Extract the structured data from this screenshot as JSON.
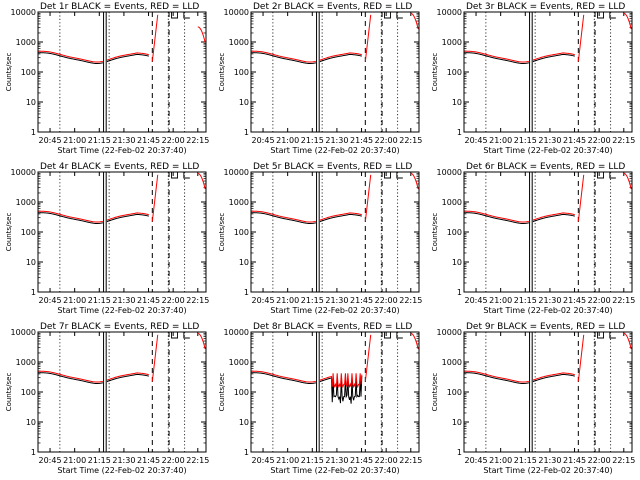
{
  "colors": {
    "events": "#000000",
    "lld": "#ff0000",
    "axis": "#000000",
    "background": "#ffffff"
  },
  "chart_data": [
    {
      "type": "line",
      "title": "Det 1r BLACK = Events, RED = LLD",
      "xlabel": "Start Time (22-Feb-02 20:37:40)",
      "ylabel": "Counts/sec",
      "x_ticks": [
        "20:45",
        "21:00",
        "21:15",
        "21:30",
        "21:45",
        "22:00",
        "22:15"
      ],
      "y_ticks": [
        "1",
        "10",
        "100",
        "1000",
        "10000"
      ],
      "ylim": [
        1,
        10000
      ],
      "yscale": "log",
      "variant": "spike",
      "series": [
        {
          "name": "Events",
          "color": "#000000"
        },
        {
          "name": "LLD",
          "color": "#ff0000"
        }
      ]
    },
    {
      "type": "line",
      "title": "Det 2r BLACK = Events, RED = LLD",
      "xlabel": "Start Time (22-Feb-02 20:37:40)",
      "ylabel": "Counts/sec",
      "x_ticks": [
        "20:45",
        "21:00",
        "21:15",
        "21:30",
        "21:45",
        "22:00",
        "22:15"
      ],
      "y_ticks": [
        "1",
        "10",
        "100",
        "1000",
        "10000"
      ],
      "ylim": [
        1,
        10000
      ],
      "yscale": "log",
      "variant": "normal",
      "series": [
        {
          "name": "Events",
          "color": "#000000"
        },
        {
          "name": "LLD",
          "color": "#ff0000"
        }
      ]
    },
    {
      "type": "line",
      "title": "Det 3r BLACK = Events, RED = LLD",
      "xlabel": "Start Time (22-Feb-02 20:37:40)",
      "ylabel": "Counts/sec",
      "x_ticks": [
        "20:45",
        "21:00",
        "21:15",
        "21:30",
        "21:45",
        "22:00",
        "22:15"
      ],
      "y_ticks": [
        "1",
        "10",
        "100",
        "1000",
        "10000"
      ],
      "ylim": [
        1,
        10000
      ],
      "yscale": "log",
      "variant": "normal",
      "series": [
        {
          "name": "Events",
          "color": "#000000"
        },
        {
          "name": "LLD",
          "color": "#ff0000"
        }
      ]
    },
    {
      "type": "line",
      "title": "Det 4r BLACK = Events, RED = LLD",
      "xlabel": "Start Time (22-Feb-02 20:37:40)",
      "ylabel": "Counts/sec",
      "x_ticks": [
        "20:45",
        "21:00",
        "21:15",
        "21:30",
        "21:45",
        "22:00",
        "22:15"
      ],
      "y_ticks": [
        "1",
        "10",
        "100",
        "1000",
        "10000"
      ],
      "ylim": [
        1,
        10000
      ],
      "yscale": "log",
      "variant": "normal",
      "series": [
        {
          "name": "Events",
          "color": "#000000"
        },
        {
          "name": "LLD",
          "color": "#ff0000"
        }
      ]
    },
    {
      "type": "line",
      "title": "Det 5r BLACK = Events, RED = LLD",
      "xlabel": "Start Time (22-Feb-02 20:37:40)",
      "ylabel": "Counts/sec",
      "x_ticks": [
        "20:45",
        "21:00",
        "21:15",
        "21:30",
        "21:45",
        "22:00",
        "22:15"
      ],
      "y_ticks": [
        "1",
        "10",
        "100",
        "1000",
        "10000"
      ],
      "ylim": [
        1,
        10000
      ],
      "yscale": "log",
      "variant": "normal",
      "series": [
        {
          "name": "Events",
          "color": "#000000"
        },
        {
          "name": "LLD",
          "color": "#ff0000"
        }
      ]
    },
    {
      "type": "line",
      "title": "Det 6r BLACK = Events, RED = LLD",
      "xlabel": "Start Time (22-Feb-02 20:37:40)",
      "ylabel": "Counts/sec",
      "x_ticks": [
        "20:45",
        "21:00",
        "21:15",
        "21:30",
        "21:45",
        "22:00",
        "22:15"
      ],
      "y_ticks": [
        "1",
        "10",
        "100",
        "1000",
        "10000"
      ],
      "ylim": [
        1,
        10000
      ],
      "yscale": "log",
      "variant": "normal",
      "series": [
        {
          "name": "Events",
          "color": "#000000"
        },
        {
          "name": "LLD",
          "color": "#ff0000"
        }
      ]
    },
    {
      "type": "line",
      "title": "Det 7r BLACK = Events, RED = LLD",
      "xlabel": "Start Time (22-Feb-02 20:37:40)",
      "ylabel": "Counts/sec",
      "x_ticks": [
        "20:45",
        "21:00",
        "21:15",
        "21:30",
        "21:45",
        "22:00",
        "22:15"
      ],
      "y_ticks": [
        "1",
        "10",
        "100",
        "1000",
        "10000"
      ],
      "ylim": [
        1,
        10000
      ],
      "yscale": "log",
      "variant": "normal",
      "series": [
        {
          "name": "Events",
          "color": "#000000"
        },
        {
          "name": "LLD",
          "color": "#ff0000"
        }
      ]
    },
    {
      "type": "line",
      "title": "Det 8r BLACK = Events, RED = LLD",
      "xlabel": "Start Time (22-Feb-02 20:37:40)",
      "ylabel": "Counts/sec",
      "x_ticks": [
        "20:45",
        "21:00",
        "21:15",
        "21:30",
        "21:45",
        "22:00",
        "22:15"
      ],
      "y_ticks": [
        "1",
        "10",
        "100",
        "1000",
        "10000"
      ],
      "ylim": [
        1,
        10000
      ],
      "yscale": "log",
      "variant": "noisy",
      "series": [
        {
          "name": "Events",
          "color": "#000000"
        },
        {
          "name": "LLD",
          "color": "#ff0000"
        }
      ]
    },
    {
      "type": "line",
      "title": "Det 9r BLACK = Events, RED = LLD",
      "xlabel": "Start Time (22-Feb-02 20:37:40)",
      "ylabel": "Counts/sec",
      "x_ticks": [
        "20:45",
        "21:00",
        "21:15",
        "21:30",
        "21:45",
        "22:00",
        "22:15"
      ],
      "y_ticks": [
        "1",
        "10",
        "100",
        "1000",
        "10000"
      ],
      "ylim": [
        1,
        10000
      ],
      "yscale": "log",
      "variant": "normal",
      "series": [
        {
          "name": "Events",
          "color": "#000000"
        },
        {
          "name": "LLD",
          "color": "#ff0000"
        }
      ]
    }
  ]
}
